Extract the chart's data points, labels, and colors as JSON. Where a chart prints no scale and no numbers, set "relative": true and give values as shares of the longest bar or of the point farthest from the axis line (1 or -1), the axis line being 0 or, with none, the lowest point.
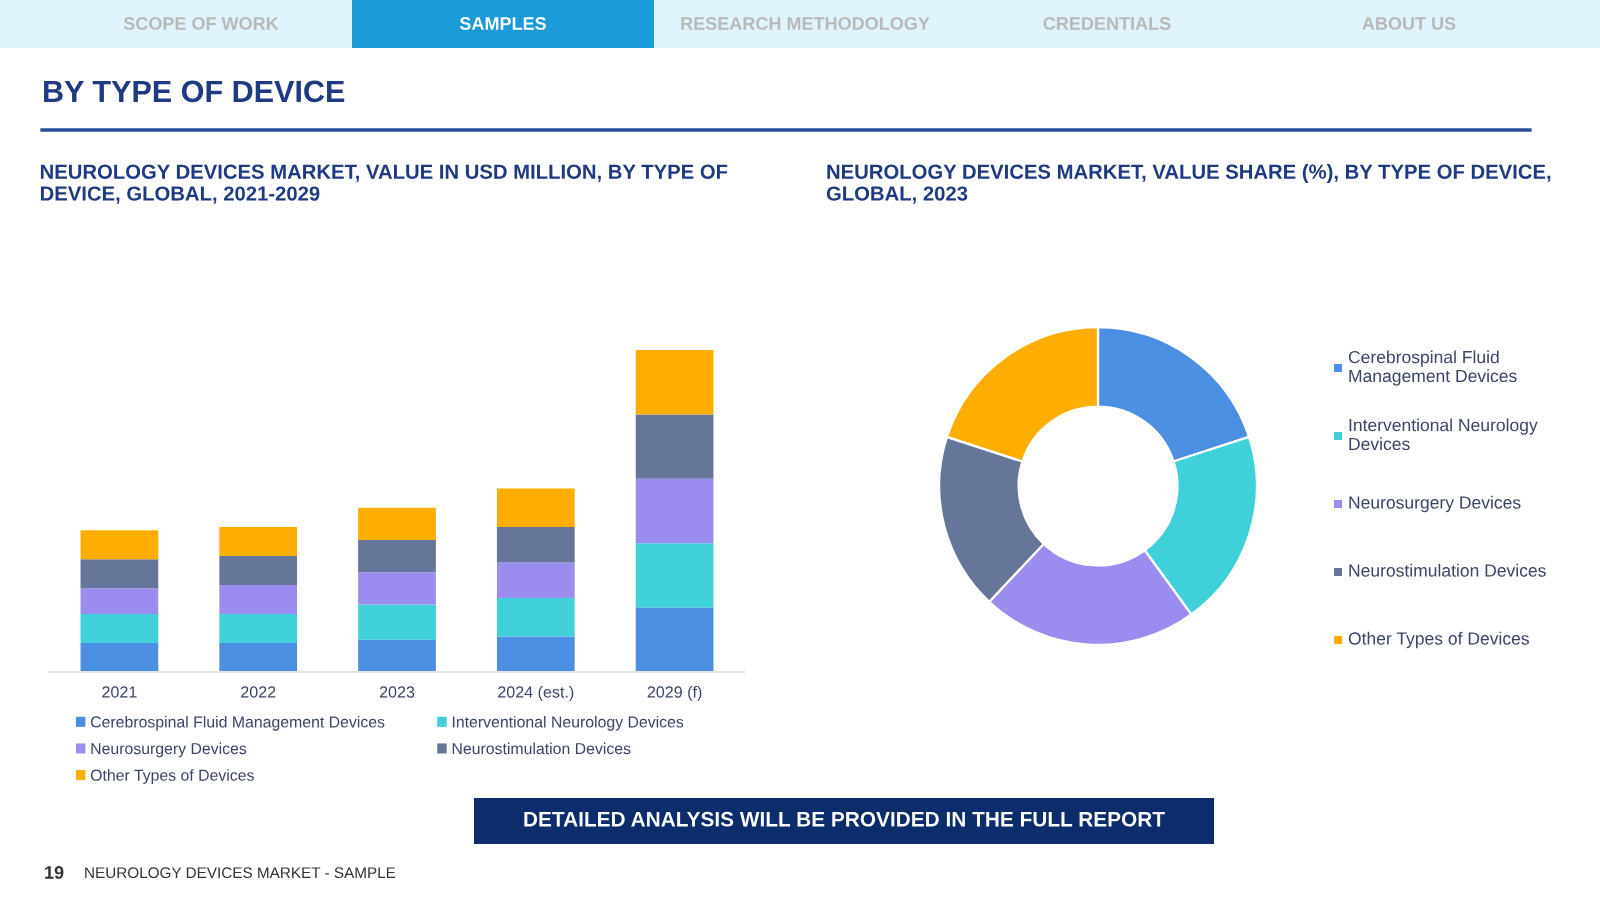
{
  "chart_data": [
    {
      "type": "other",
      "title": "BY TYPE OF DEVICE",
      "annotations": [
        "SCOPE OF WORK",
        "SAMPLES",
        "RESEARCH METHODOLOGY",
        "CREDENTIALS",
        "ABOUT US",
        "DETAILED ANALYSIS WILL BE PROVIDED IN THE FULL REPORT",
        "19",
        "NEUROLOGY DEVICES MARKET - SAMPLE"
      ]
    },
    {
      "type": "bar",
      "title": "NEUROLOGY DEVICES MARKET, VALUE IN USD MILLION, BY TYPE OF DEVICE, GLOBAL, 2021-2029",
      "categories": [
        "2021",
        "2022",
        "2023",
        "2024 (est.)",
        "2029 (f)"
      ],
      "stacked": true,
      "relative": true,
      "legend": "bottom",
      "series": [
        {
          "name": "Cerebrospinal Fluid Management Devices",
          "color": "#4a8fe2",
          "values": [
            0.09,
            0.09,
            0.1,
            0.11,
            0.2
          ]
        },
        {
          "name": "Interventional Neurology Devices",
          "color": "#3fd0d9",
          "values": [
            0.09,
            0.09,
            0.11,
            0.12,
            0.2
          ]
        },
        {
          "name": "Neurosurgery Devices",
          "color": "#9b8cef",
          "values": [
            0.08,
            0.09,
            0.1,
            0.11,
            0.2
          ]
        },
        {
          "name": "Neurostimulation Devices",
          "color": "#657699",
          "values": [
            0.09,
            0.09,
            0.1,
            0.11,
            0.2
          ]
        },
        {
          "name": "Other Types of Devices",
          "color": "#ffae00",
          "values": [
            0.09,
            0.09,
            0.1,
            0.12,
            0.2
          ]
        }
      ]
    },
    {
      "type": "donut",
      "title": "NEUROLOGY DEVICES MARKET, VALUE SHARE (%), BY TYPE OF DEVICE, GLOBAL, 2023",
      "categories": [
        "Cerebrospinal Fluid Management Devices",
        "Interventional Neurology Devices",
        "Neurosurgery Devices",
        "Neurostimulation Devices",
        "Other Types of Devices"
      ],
      "values": [
        20,
        20,
        22,
        18,
        20
      ],
      "colors": [
        "#4a8fe2",
        "#3fd0d9",
        "#9b8cef",
        "#657699",
        "#ffae00"
      ],
      "legend": "right"
    }
  ]
}
